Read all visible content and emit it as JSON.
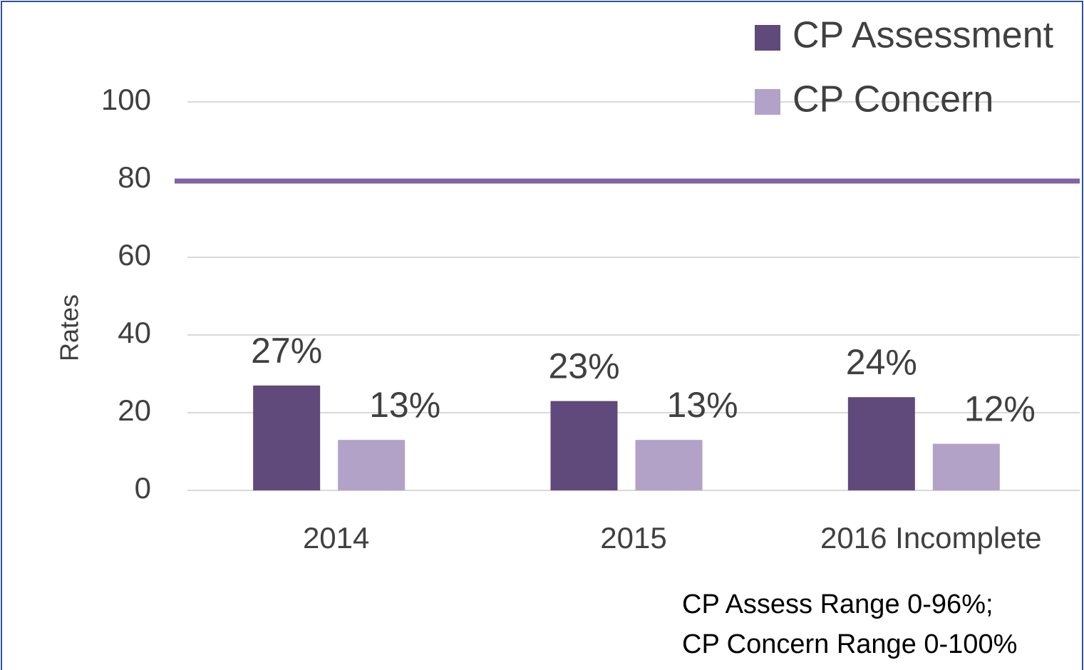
{
  "chart_data": {
    "type": "bar",
    "categories": [
      "2014",
      "2015",
      "2016 Incomplete"
    ],
    "series": [
      {
        "name": "CP Assessment",
        "color": "#604a7b",
        "values": [
          27,
          23,
          24
        ]
      },
      {
        "name": "CP Concern",
        "color": "#b3a2c7",
        "values": [
          13,
          13,
          12
        ]
      }
    ],
    "y_label": "Rates",
    "ylim": [
      0,
      100
    ],
    "yticks": [
      0,
      20,
      40,
      60,
      80,
      100
    ],
    "grid": true,
    "reference_line": {
      "value": 80,
      "color": "#8064a2"
    },
    "legend": "top-right",
    "annotation": [
      "CP Assess Range 0-96%;",
      "CP Concern Range 0-100%"
    ]
  }
}
